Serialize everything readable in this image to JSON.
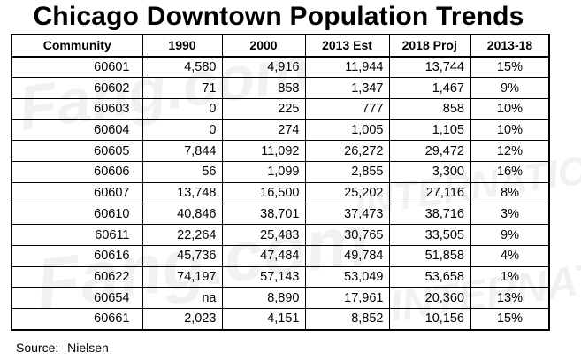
{
  "title": "Chicago Downtown Population Trends",
  "source_label": "Source:",
  "source_value": "Nielsen",
  "chart_data": {
    "type": "table",
    "title": "Chicago Downtown Population Trends",
    "columns": [
      "Community",
      "1990",
      "2000",
      "2013 Est",
      "2018 Proj",
      "2013-18"
    ],
    "rows": [
      [
        "60601",
        "4,580",
        "4,916",
        "11,944",
        "13,744",
        "15%"
      ],
      [
        "60602",
        "71",
        "858",
        "1,347",
        "1,467",
        "9%"
      ],
      [
        "60603",
        "0",
        "225",
        "777",
        "858",
        "10%"
      ],
      [
        "60604",
        "0",
        "274",
        "1,005",
        "1,105",
        "10%"
      ],
      [
        "60605",
        "7,844",
        "11,092",
        "26,272",
        "29,472",
        "12%"
      ],
      [
        "60606",
        "56",
        "1,099",
        "2,855",
        "3,300",
        "16%"
      ],
      [
        "60607",
        "13,748",
        "16,500",
        "25,202",
        "27,116",
        "8%"
      ],
      [
        "60610",
        "40,846",
        "38,701",
        "37,473",
        "38,716",
        "3%"
      ],
      [
        "60611",
        "22,264",
        "25,483",
        "30,765",
        "33,505",
        "9%"
      ],
      [
        "60616",
        "45,736",
        "47,484",
        "49,784",
        "51,858",
        "4%"
      ],
      [
        "60622",
        "74,197",
        "57,143",
        "53,049",
        "53,658",
        "1%"
      ],
      [
        "60654",
        "na",
        "8,890",
        "17,961",
        "20,360",
        "13%"
      ],
      [
        "60661",
        "2,023",
        "4,151",
        "8,852",
        "10,156",
        "15%"
      ]
    ]
  }
}
